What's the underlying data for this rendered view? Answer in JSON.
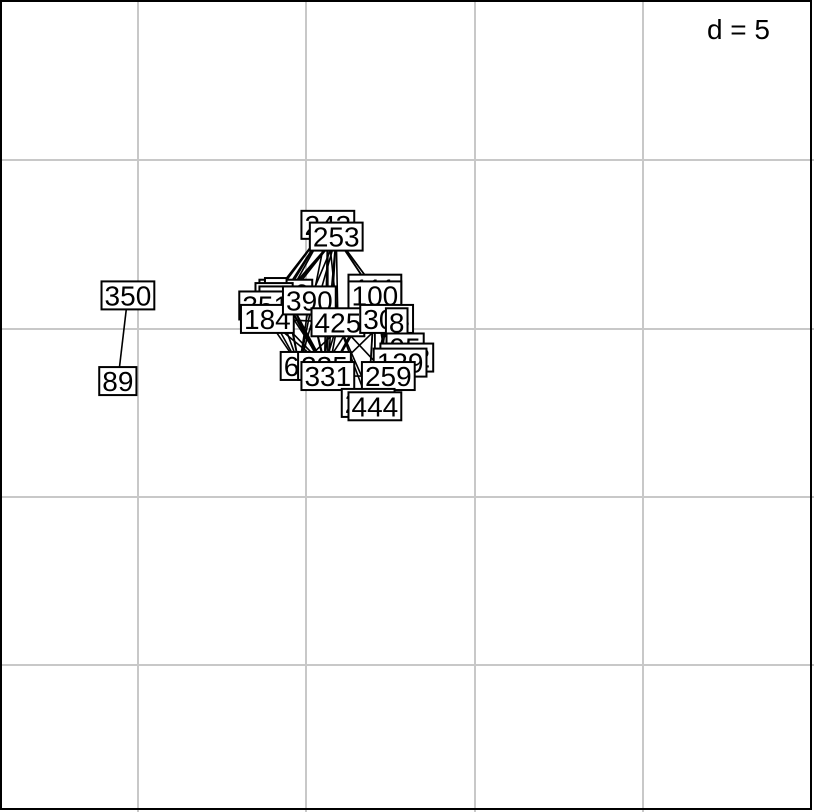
{
  "chart_data": {
    "type": "network-scatter",
    "grid_label": "d = 5",
    "grid": true,
    "nodes": [
      {
        "id": "350",
        "x": -0.3,
        "y": 1.0
      },
      {
        "id": "89",
        "x": -0.6,
        "y": -1.55
      },
      {
        "id": "356",
        "x": 4.4,
        "y": 1.05
      },
      {
        "id": "3",
        "x": 4.1,
        "y": 1.1
      },
      {
        "id": "30",
        "x": 4.05,
        "y": 0.95
      },
      {
        "id": "214",
        "x": 4.4,
        "y": 0.85
      },
      {
        "id": "351",
        "x": 3.8,
        "y": 0.7
      },
      {
        "id": "184",
        "x": 3.85,
        "y": 0.3
      },
      {
        "id": "390",
        "x": 5.1,
        "y": 0.85
      },
      {
        "id": "243",
        "x": 5.65,
        "y": 3.1
      },
      {
        "id": "253",
        "x": 5.9,
        "y": 2.75
      },
      {
        "id": "111",
        "x": 7.05,
        "y": 1.2
      },
      {
        "id": "100",
        "x": 7.05,
        "y": 1.0
      },
      {
        "id": "425",
        "x": 5.95,
        "y": 0.2
      },
      {
        "id": "308",
        "x": 7.4,
        "y": 0.3
      },
      {
        "id": "8",
        "x": 7.7,
        "y": 0.2
      },
      {
        "id": "95",
        "x": 7.95,
        "y": -0.55
      },
      {
        "id": "152",
        "x": 8.0,
        "y": -0.85
      },
      {
        "id": "129",
        "x": 7.8,
        "y": -1.0
      },
      {
        "id": "62",
        "x": 4.8,
        "y": -1.1
      },
      {
        "id": "335",
        "x": 5.55,
        "y": -1.1
      },
      {
        "id": "331",
        "x": 5.65,
        "y": -1.4
      },
      {
        "id": "259",
        "x": 7.45,
        "y": -1.4
      },
      {
        "id": "276",
        "x": 6.85,
        "y": -2.2
      },
      {
        "id": "444",
        "x": 7.05,
        "y": -2.3
      }
    ],
    "edges": [
      [
        "350",
        "89"
      ],
      [
        "243",
        "356"
      ],
      [
        "243",
        "3"
      ],
      [
        "243",
        "30"
      ],
      [
        "243",
        "214"
      ],
      [
        "243",
        "351"
      ],
      [
        "243",
        "184"
      ],
      [
        "243",
        "425"
      ],
      [
        "243",
        "335"
      ],
      [
        "243",
        "331"
      ],
      [
        "243",
        "62"
      ],
      [
        "243",
        "111"
      ],
      [
        "243",
        "100"
      ],
      [
        "253",
        "356"
      ],
      [
        "253",
        "214"
      ],
      [
        "253",
        "184"
      ],
      [
        "253",
        "425"
      ],
      [
        "253",
        "335"
      ],
      [
        "253",
        "331"
      ],
      [
        "253",
        "62"
      ],
      [
        "253",
        "111"
      ],
      [
        "253",
        "100"
      ],
      [
        "253",
        "390"
      ],
      [
        "356",
        "62"
      ],
      [
        "356",
        "335"
      ],
      [
        "356",
        "331"
      ],
      [
        "356",
        "425"
      ],
      [
        "356",
        "390"
      ],
      [
        "214",
        "62"
      ],
      [
        "214",
        "335"
      ],
      [
        "214",
        "331"
      ],
      [
        "214",
        "425"
      ],
      [
        "214",
        "390"
      ],
      [
        "351",
        "62"
      ],
      [
        "351",
        "335"
      ],
      [
        "351",
        "390"
      ],
      [
        "184",
        "62"
      ],
      [
        "184",
        "335"
      ],
      [
        "184",
        "425"
      ],
      [
        "30",
        "62"
      ],
      [
        "3",
        "335"
      ],
      [
        "390",
        "62"
      ],
      [
        "390",
        "335"
      ],
      [
        "390",
        "425"
      ],
      [
        "390",
        "331"
      ],
      [
        "62",
        "335"
      ],
      [
        "62",
        "331"
      ],
      [
        "62",
        "276"
      ],
      [
        "335",
        "331"
      ],
      [
        "335",
        "425"
      ],
      [
        "425",
        "111"
      ],
      [
        "425",
        "100"
      ],
      [
        "425",
        "308"
      ],
      [
        "425",
        "8"
      ],
      [
        "425",
        "331"
      ],
      [
        "425",
        "444"
      ],
      [
        "425",
        "276"
      ],
      [
        "425",
        "259"
      ],
      [
        "111",
        "308"
      ],
      [
        "111",
        "8"
      ],
      [
        "111",
        "95"
      ],
      [
        "111",
        "152"
      ],
      [
        "111",
        "129"
      ],
      [
        "111",
        "259"
      ],
      [
        "111",
        "276"
      ],
      [
        "111",
        "444"
      ],
      [
        "111",
        "331"
      ],
      [
        "111",
        "335"
      ],
      [
        "100",
        "308"
      ],
      [
        "100",
        "8"
      ],
      [
        "100",
        "95"
      ],
      [
        "100",
        "152"
      ],
      [
        "100",
        "129"
      ],
      [
        "100",
        "259"
      ],
      [
        "100",
        "276"
      ],
      [
        "100",
        "444"
      ],
      [
        "100",
        "331"
      ],
      [
        "100",
        "62"
      ],
      [
        "308",
        "259"
      ],
      [
        "308",
        "276"
      ],
      [
        "308",
        "444"
      ],
      [
        "308",
        "331"
      ],
      [
        "308",
        "95"
      ],
      [
        "308",
        "152"
      ],
      [
        "308",
        "129"
      ],
      [
        "8",
        "259"
      ],
      [
        "8",
        "276"
      ],
      [
        "8",
        "444"
      ],
      [
        "8",
        "95"
      ],
      [
        "8",
        "152"
      ],
      [
        "8",
        "129"
      ],
      [
        "95",
        "259"
      ],
      [
        "95",
        "444"
      ],
      [
        "95",
        "276"
      ],
      [
        "152",
        "259"
      ],
      [
        "152",
        "444"
      ],
      [
        "152",
        "276"
      ],
      [
        "129",
        "259"
      ],
      [
        "129",
        "444"
      ],
      [
        "129",
        "276"
      ],
      [
        "259",
        "331"
      ],
      [
        "259",
        "276"
      ],
      [
        "259",
        "444"
      ],
      [
        "331",
        "276"
      ],
      [
        "331",
        "444"
      ],
      [
        "335",
        "276"
      ],
      [
        "335",
        "444"
      ],
      [
        "62",
        "444"
      ]
    ]
  }
}
